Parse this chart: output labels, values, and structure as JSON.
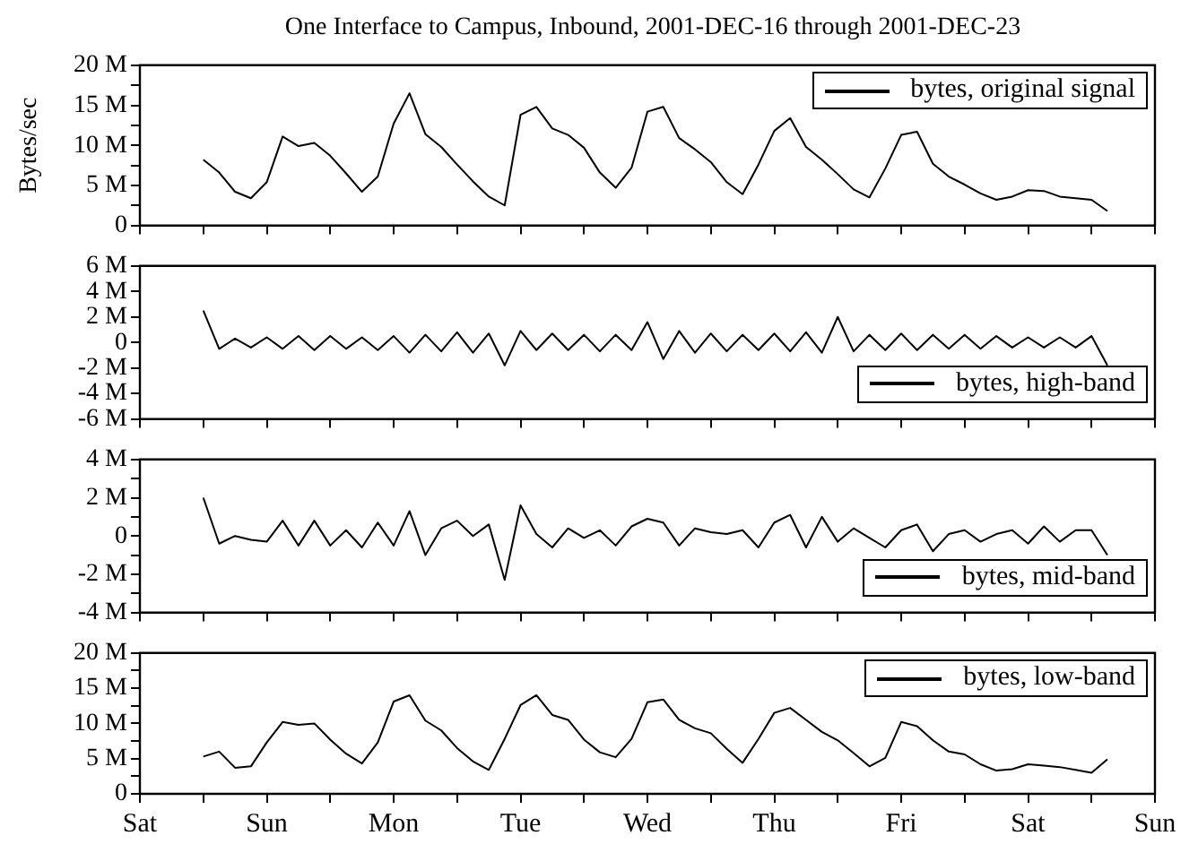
{
  "chart_data": [
    {
      "type": "line",
      "title": "One Interface to Campus, Inbound, 2001-DEC-16 through 2001-DEC-23",
      "ylabel": "Bytes/sec",
      "legend": "top right",
      "grid": false,
      "marker": "none",
      "line_style": "solid",
      "tick_labels": "y",
      "categories": [
        null,
        null,
        null,
        null,
        null,
        null,
        null,
        null,
        null,
        null,
        null,
        null,
        null,
        null,
        null,
        null,
        null,
        null,
        null,
        null,
        null,
        null,
        null,
        null,
        null,
        null,
        null,
        null,
        null,
        null,
        null,
        null,
        null,
        null,
        null,
        null,
        null,
        null,
        null,
        null,
        null,
        null,
        null,
        null,
        null,
        null,
        null,
        null,
        null,
        null,
        null,
        null,
        null,
        null,
        null,
        null,
        null,
        null,
        null,
        null,
        null,
        null,
        null,
        null,
        null
      ],
      "ylim": [
        0,
        20
      ],
      "yticks": [
        {
          "value": 0,
          "label": "0"
        },
        {
          "value": 2.5,
          "label": null
        },
        {
          "value": 5,
          "label": "5 M"
        },
        {
          "value": 7.5,
          "label": null
        },
        {
          "value": 10,
          "label": "10 M"
        },
        {
          "value": 12.5,
          "label": null
        },
        {
          "value": 15,
          "label": "15 M"
        },
        {
          "value": 17.5,
          "label": null
        },
        {
          "value": 20,
          "label": "20 M"
        }
      ],
      "series": [
        {
          "name": "bytes, original signal",
          "color": "#000000",
          "values": [
            null,
            null,
            null,
            null,
            8.2,
            6.6,
            4.2,
            3.4,
            5.4,
            11.1,
            9.9,
            10.3,
            8.7,
            6.5,
            4.2,
            6.1,
            12.7,
            16.5,
            11.4,
            9.8,
            7.6,
            5.5,
            3.6,
            2.5,
            13.8,
            14.8,
            12.1,
            11.3,
            9.7,
            6.6,
            4.7,
            7.2,
            14.2,
            14.8,
            10.9,
            9.5,
            7.9,
            5.4,
            3.9,
            7.6,
            11.8,
            13.4,
            9.8,
            8.2,
            6.4,
            4.5,
            3.5,
            7.1,
            11.3,
            11.7,
            7.7,
            6.1,
            5.1,
            4.0,
            3.2,
            3.6,
            4.4,
            4.3,
            3.6,
            3.4,
            3.2,
            1.8,
            null,
            null,
            null
          ]
        }
      ]
    },
    {
      "type": "line",
      "legend": "bottom right",
      "grid": false,
      "marker": "none",
      "line_style": "solid",
      "tick_labels": "y",
      "categories": [
        null,
        null,
        null,
        null,
        null,
        null,
        null,
        null,
        null,
        null,
        null,
        null,
        null,
        null,
        null,
        null,
        null,
        null,
        null,
        null,
        null,
        null,
        null,
        null,
        null,
        null,
        null,
        null,
        null,
        null,
        null,
        null,
        null,
        null,
        null,
        null,
        null,
        null,
        null,
        null,
        null,
        null,
        null,
        null,
        null,
        null,
        null,
        null,
        null,
        null,
        null,
        null,
        null,
        null,
        null,
        null,
        null,
        null,
        null,
        null,
        null,
        null,
        null,
        null,
        null
      ],
      "ylim": [
        -6,
        6
      ],
      "yticks": [
        {
          "value": -6,
          "label": "-6 M"
        },
        {
          "value": -4,
          "label": "-4 M"
        },
        {
          "value": -2,
          "label": "-2 M"
        },
        {
          "value": 0,
          "label": "0"
        },
        {
          "value": 2,
          "label": "2 M"
        },
        {
          "value": 4,
          "label": "4 M"
        },
        {
          "value": 6,
          "label": "6 M"
        }
      ],
      "series": [
        {
          "name": "bytes, high-band",
          "color": "#000000",
          "values": [
            null,
            null,
            null,
            null,
            2.5,
            -0.5,
            0.3,
            -0.4,
            0.4,
            -0.5,
            0.5,
            -0.6,
            0.5,
            -0.5,
            0.4,
            -0.6,
            0.5,
            -0.8,
            0.6,
            -0.7,
            0.8,
            -0.8,
            0.7,
            -1.8,
            0.9,
            -0.6,
            0.7,
            -0.6,
            0.6,
            -0.7,
            0.6,
            -0.6,
            1.6,
            -1.3,
            0.9,
            -0.8,
            0.7,
            -0.7,
            0.6,
            -0.6,
            0.7,
            -0.7,
            0.8,
            -0.8,
            2.0,
            -0.7,
            0.6,
            -0.6,
            0.7,
            -0.6,
            0.6,
            -0.5,
            0.6,
            -0.5,
            0.5,
            -0.4,
            0.4,
            -0.4,
            0.4,
            -0.4,
            0.5,
            -1.8,
            null,
            null,
            null
          ]
        }
      ]
    },
    {
      "type": "line",
      "legend": "bottom right",
      "grid": false,
      "marker": "none",
      "line_style": "solid",
      "tick_labels": "y",
      "categories": [
        null,
        null,
        null,
        null,
        null,
        null,
        null,
        null,
        null,
        null,
        null,
        null,
        null,
        null,
        null,
        null,
        null,
        null,
        null,
        null,
        null,
        null,
        null,
        null,
        null,
        null,
        null,
        null,
        null,
        null,
        null,
        null,
        null,
        null,
        null,
        null,
        null,
        null,
        null,
        null,
        null,
        null,
        null,
        null,
        null,
        null,
        null,
        null,
        null,
        null,
        null,
        null,
        null,
        null,
        null,
        null,
        null,
        null,
        null,
        null,
        null,
        null,
        null,
        null,
        null
      ],
      "ylim": [
        -4,
        4
      ],
      "yticks": [
        {
          "value": -4,
          "label": "-4 M"
        },
        {
          "value": -3,
          "label": null
        },
        {
          "value": -2,
          "label": "-2 M"
        },
        {
          "value": -1,
          "label": null
        },
        {
          "value": 0,
          "label": "0"
        },
        {
          "value": 1,
          "label": null
        },
        {
          "value": 2,
          "label": "2 M"
        },
        {
          "value": 3,
          "label": null
        },
        {
          "value": 4,
          "label": "4 M"
        }
      ],
      "series": [
        {
          "name": "bytes, mid-band",
          "color": "#000000",
          "values": [
            null,
            null,
            null,
            null,
            2.0,
            -0.4,
            0,
            -0.2,
            -0.3,
            0.8,
            -0.5,
            0.8,
            -0.5,
            0.3,
            -0.6,
            0.7,
            -0.5,
            1.3,
            -1.0,
            0.4,
            0.8,
            0,
            0.6,
            -2.3,
            1.6,
            0.1,
            -0.6,
            0.4,
            -0.1,
            0.3,
            -0.5,
            0.5,
            0.9,
            0.7,
            -0.5,
            0.4,
            0.2,
            0.1,
            0.3,
            -0.6,
            0.7,
            1.1,
            -0.6,
            1.0,
            -0.3,
            0.4,
            -0.1,
            -0.6,
            0.3,
            0.6,
            -0.8,
            0.1,
            0.3,
            -0.3,
            0.1,
            0.3,
            -0.4,
            0.5,
            -0.3,
            0.3,
            0.3,
            -1.0,
            null,
            null,
            null
          ]
        }
      ]
    },
    {
      "type": "line",
      "legend": "top right",
      "grid": false,
      "marker": "none",
      "line_style": "solid",
      "categories": [
        "Sat",
        null,
        null,
        null,
        null,
        null,
        null,
        null,
        "Sun",
        null,
        null,
        null,
        null,
        null,
        null,
        null,
        "Mon",
        null,
        null,
        null,
        null,
        null,
        null,
        null,
        "Tue",
        null,
        null,
        null,
        null,
        null,
        null,
        null,
        "Wed",
        null,
        null,
        null,
        null,
        null,
        null,
        null,
        "Thu",
        null,
        null,
        null,
        null,
        null,
        null,
        null,
        "Fri",
        null,
        null,
        null,
        null,
        null,
        null,
        null,
        "Sat",
        null,
        null,
        null,
        null,
        null,
        null,
        null,
        "Sun"
      ],
      "ylim": [
        0,
        20
      ],
      "yticks": [
        {
          "value": 0,
          "label": "0"
        },
        {
          "value": 2.5,
          "label": null
        },
        {
          "value": 5,
          "label": "5 M"
        },
        {
          "value": 7.5,
          "label": null
        },
        {
          "value": 10,
          "label": "10 M"
        },
        {
          "value": 12.5,
          "label": null
        },
        {
          "value": 15,
          "label": "15 M"
        },
        {
          "value": 17.5,
          "label": null
        },
        {
          "value": 20,
          "label": "20 M"
        }
      ],
      "series": [
        {
          "name": "bytes, low-band",
          "color": "#000000",
          "values": [
            null,
            null,
            null,
            null,
            5.3,
            6.0,
            3.7,
            3.9,
            7.3,
            10.2,
            9.8,
            10.0,
            7.7,
            5.7,
            4.3,
            7.3,
            13.1,
            14.0,
            10.4,
            9.0,
            6.5,
            4.6,
            3.4,
            7.8,
            12.6,
            14.0,
            11.2,
            10.5,
            7.7,
            5.9,
            5.2,
            7.8,
            13.0,
            13.4,
            10.5,
            9.3,
            8.6,
            6.4,
            4.4,
            7.8,
            11.5,
            12.2,
            10.5,
            8.8,
            7.6,
            5.8,
            3.9,
            5.1,
            10.2,
            9.6,
            7.6,
            6.0,
            5.6,
            4.2,
            3.3,
            3.5,
            4.2,
            4.0,
            3.8,
            3.4,
            3.0,
            4.9,
            null,
            null,
            null
          ]
        }
      ]
    }
  ]
}
